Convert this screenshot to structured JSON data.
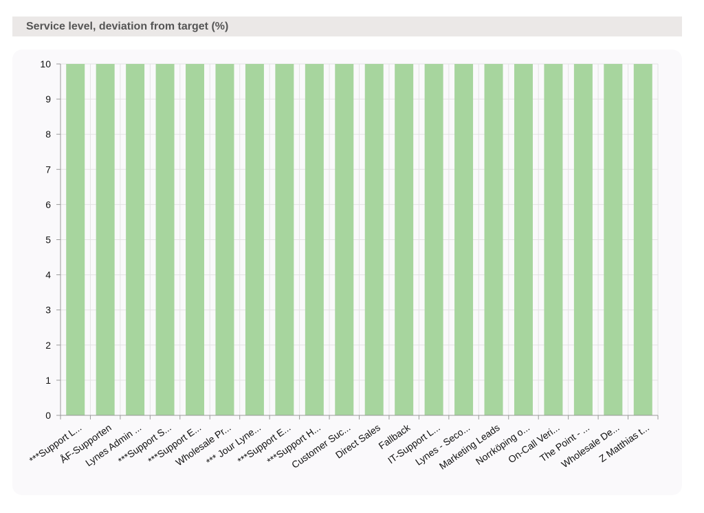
{
  "panel": {
    "title": "Service level, deviation from target (%)"
  },
  "chart_data": {
    "type": "bar",
    "categories": [
      "***Support L...",
      "ÅF-Supporten",
      "Lynes Admin ...",
      "***Support S...",
      "***Support E...",
      "Wholesale Pr...",
      "*** Jour Lyne...",
      "***Support E...",
      "***Support H...",
      "Customer Suc...",
      "Direct Sales",
      "Fallback",
      "IT-Support L...",
      "Lynes - Seco...",
      "Marketing Leads",
      "Norrköping o...",
      "On-Call Veri...",
      "The Point - ...",
      "Wholesale De...",
      "Z Matthias t..."
    ],
    "values": [
      10,
      10,
      10,
      10,
      10,
      10,
      10,
      10,
      10,
      10,
      10,
      10,
      10,
      10,
      10,
      10,
      10,
      10,
      10,
      10
    ],
    "yticks": [
      "0",
      "1",
      "2",
      "3",
      "4",
      "5",
      "6",
      "7",
      "8",
      "9",
      "10"
    ],
    "ylim": [
      0,
      10
    ],
    "grid": true,
    "bar_color": "#a7d59e"
  }
}
